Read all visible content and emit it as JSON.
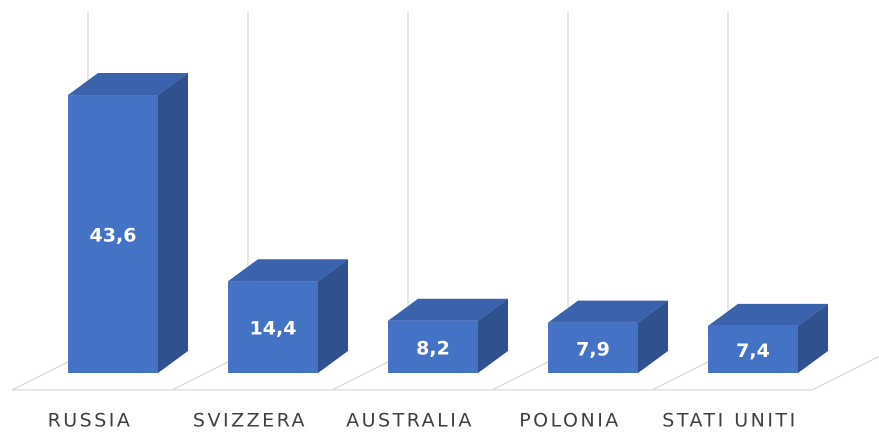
{
  "chart_data": {
    "type": "bar3d",
    "categories": [
      "RUSSIA",
      "SVIZZERA",
      "AUSTRALIA",
      "POLONIA",
      "STATI UNITI"
    ],
    "values": [
      43.6,
      14.4,
      8.2,
      7.9,
      7.4
    ],
    "value_labels": [
      "43,6",
      "14,4",
      "8,2",
      "7,9",
      "7,4"
    ],
    "color": "#4472c4",
    "ylim": [
      0,
      56
    ],
    "grid": true
  }
}
